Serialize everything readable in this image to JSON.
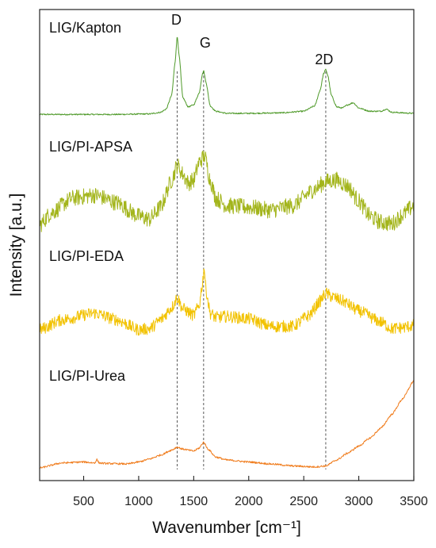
{
  "chart_data": {
    "type": "line",
    "title": "",
    "xlabel": "Wavenumber [cm⁻¹]",
    "ylabel": "Intensity [a.u.]",
    "xlim": [
      100,
      3500
    ],
    "xticks": [
      "500",
      "1000",
      "1500",
      "2000",
      "2500",
      "3000",
      "3500"
    ],
    "y_tick_labels_shown": false,
    "grid": false,
    "legend": "none",
    "peak_markers": [
      {
        "label": "D",
        "x": 1350
      },
      {
        "label": "G",
        "x": 1590
      },
      {
        "label": "2D",
        "x": 2700
      }
    ],
    "series": [
      {
        "name": "LIG/Kapton",
        "color": "#4f9a2a",
        "noise": 0.06,
        "x": [
          100,
          400,
          800,
          1100,
          1200,
          1250,
          1300,
          1330,
          1350,
          1370,
          1400,
          1450,
          1500,
          1550,
          1580,
          1590,
          1610,
          1650,
          1700,
          1800,
          2000,
          2300,
          2500,
          2600,
          2650,
          2680,
          2700,
          2720,
          2750,
          2800,
          2850,
          2900,
          2950,
          3000,
          3100,
          3200,
          3250,
          3300,
          3500
        ],
        "values": [
          0.2,
          0.2,
          0.2,
          0.25,
          0.4,
          0.7,
          2.0,
          5.0,
          7.5,
          5.5,
          1.8,
          0.9,
          1.1,
          2.2,
          4.0,
          4.3,
          3.3,
          1.0,
          0.5,
          0.3,
          0.3,
          0.35,
          0.5,
          1.0,
          2.5,
          4.0,
          4.4,
          3.8,
          2.0,
          0.9,
          0.8,
          1.1,
          1.3,
          0.8,
          0.5,
          0.5,
          0.7,
          0.4,
          0.3
        ]
      },
      {
        "name": "LIG/PI-APSA",
        "color": "#a3b51c",
        "noise": 0.55,
        "x": [
          100,
          200,
          400,
          600,
          800,
          1000,
          1100,
          1200,
          1300,
          1350,
          1400,
          1450,
          1500,
          1550,
          1600,
          1650,
          1700,
          1800,
          2000,
          2200,
          2400,
          2600,
          2700,
          2800,
          2900,
          3000,
          3100,
          3200,
          3300,
          3400,
          3500
        ],
        "values": [
          0.0,
          0.8,
          1.8,
          2.0,
          1.5,
          0.6,
          0.4,
          1.2,
          3.0,
          4.0,
          3.4,
          2.8,
          3.0,
          4.2,
          4.6,
          3.0,
          1.8,
          1.3,
          1.2,
          1.0,
          1.3,
          2.4,
          2.9,
          3.0,
          2.6,
          1.6,
          0.6,
          0.2,
          0.1,
          0.7,
          1.3
        ]
      },
      {
        "name": "LIG/PI-EDA",
        "color": "#f2c200",
        "noise": 0.55,
        "x": [
          100,
          300,
          600,
          800,
          1000,
          1100,
          1200,
          1300,
          1350,
          1400,
          1500,
          1550,
          1580,
          1595,
          1610,
          1650,
          1700,
          1800,
          2000,
          2200,
          2400,
          2550,
          2650,
          2700,
          2750,
          2850,
          3000,
          3200,
          3300,
          3400,
          3500
        ],
        "values": [
          0.3,
          1.2,
          1.8,
          1.2,
          0.3,
          0.4,
          1.2,
          2.3,
          3.2,
          2.2,
          1.6,
          2.5,
          4.5,
          6.0,
          4.0,
          1.8,
          1.4,
          1.5,
          1.3,
          0.6,
          0.6,
          1.6,
          2.9,
          3.6,
          3.3,
          2.9,
          2.0,
          1.0,
          0.4,
          0.5,
          0.7
        ]
      },
      {
        "name": "LIG/PI-Urea",
        "color": "#f07d1e",
        "noise": 0.09,
        "x": [
          100,
          300,
          500,
          600,
          620,
          640,
          700,
          900,
          1000,
          1100,
          1200,
          1300,
          1350,
          1400,
          1500,
          1550,
          1590,
          1630,
          1700,
          1800,
          2000,
          2200,
          2400,
          2600,
          2700,
          2800,
          2900,
          3000,
          3100,
          3200,
          3300,
          3400,
          3500
        ],
        "values": [
          0.0,
          0.5,
          0.6,
          0.5,
          0.85,
          0.5,
          0.45,
          0.4,
          0.6,
          0.9,
          1.3,
          1.8,
          2.1,
          1.9,
          1.7,
          2.0,
          2.6,
          1.9,
          1.1,
          0.8,
          0.6,
          0.4,
          0.2,
          0.1,
          0.2,
          0.8,
          1.5,
          2.2,
          3.0,
          4.0,
          5.4,
          7.0,
          8.8
        ]
      }
    ]
  }
}
